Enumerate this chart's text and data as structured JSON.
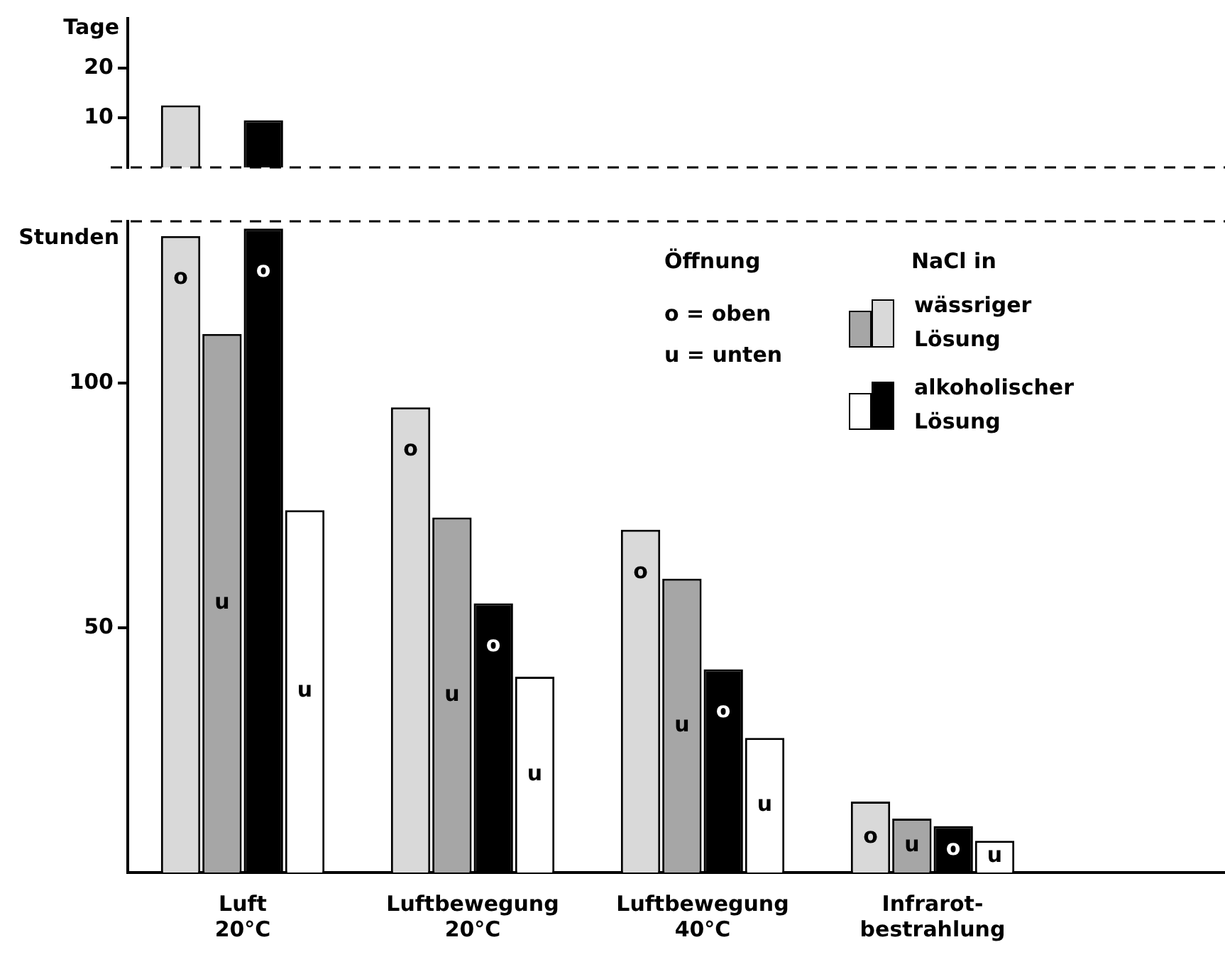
{
  "chart_data": [
    {
      "type": "bar",
      "ylabel": "Tage",
      "tick_labels": "y",
      "series": [
        {
          "color": "#d9d9d9",
          "values": [
            12.5,
            null,
            null,
            null
          ]
        },
        {
          "color": "#a6a6a6",
          "values": [
            null,
            null,
            null,
            null
          ]
        },
        {
          "color": "#000000",
          "values": [
            9.5,
            null,
            null,
            null
          ]
        },
        {
          "color": "#ffffff",
          "values": [
            null,
            null,
            null,
            null
          ]
        }
      ],
      "ylim": [
        0,
        30
      ],
      "yticks": [
        10,
        20
      ],
      "ref_lines": [
        {
          "axis": "y",
          "value": 0,
          "line_style": "dashed"
        }
      ],
      "grid": false
    },
    {
      "type": "bar",
      "ylabel": "Stunden",
      "categories": [
        "Luft\n20°C",
        "Luftbewegung\n20°C",
        "Luftbewegung\n40°C",
        "Infrarot-\nbestrahlung"
      ],
      "series": [
        {
          "name": "wässriger Lösung",
          "color": "#d9d9d9",
          "values": [
            130,
            95,
            70,
            14.5
          ],
          "value_labels": [
            "o",
            "o",
            "o",
            "o"
          ]
        },
        {
          "color": "#a6a6a6",
          "values": [
            110,
            72.5,
            60,
            11
          ],
          "value_labels": [
            "u",
            "u",
            "u",
            "u"
          ]
        },
        {
          "name": "alkoholischer Lösung",
          "color": "#000000",
          "values": [
            131.5,
            55,
            41.5,
            9.5
          ],
          "value_labels": [
            "o",
            "o",
            "o",
            "o"
          ]
        },
        {
          "color": "#ffffff",
          "values": [
            74,
            40,
            27.5,
            6.5
          ],
          "value_labels": [
            "u",
            "u",
            "u",
            "u"
          ]
        }
      ],
      "legend_title": "NaCl in",
      "legend": "right",
      "ylim": [
        0,
        133
      ],
      "yticks": [
        50,
        100
      ],
      "ref_lines": [
        {
          "axis": "y",
          "value": 133,
          "line_style": "dashed"
        }
      ],
      "annotations": [
        "Öffnung",
        "o = oben",
        "u = unten"
      ],
      "grid": false
    }
  ]
}
